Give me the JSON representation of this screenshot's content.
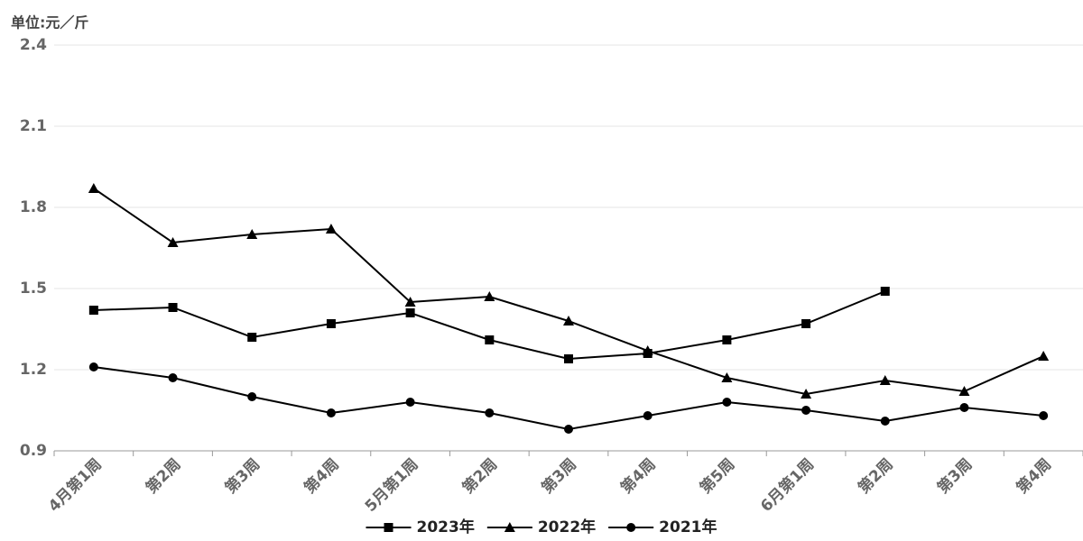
{
  "chart_data": {
    "type": "line",
    "unit_label": "单位:元／斤",
    "categories": [
      "4月第1周",
      "第2周",
      "第3周",
      "第4周",
      "5月第1周",
      "第2周",
      "第3周",
      "第4周",
      "第5周",
      "6月第1周",
      "第2周",
      "第3周",
      "第4周"
    ],
    "series": [
      {
        "name": "2023年",
        "color": "#000000",
        "marker": "square",
        "values": [
          1.42,
          1.43,
          1.32,
          1.37,
          1.41,
          1.31,
          1.24,
          1.26,
          1.31,
          1.37,
          1.49,
          null,
          null
        ]
      },
      {
        "name": "2022年",
        "color": "#000000",
        "marker": "triangle",
        "values": [
          1.87,
          1.67,
          1.7,
          1.72,
          1.45,
          1.47,
          1.38,
          1.27,
          1.17,
          1.11,
          1.16,
          1.12,
          1.25
        ]
      },
      {
        "name": "2021年",
        "color": "#000000",
        "marker": "circle",
        "values": [
          1.21,
          1.17,
          1.1,
          1.04,
          1.08,
          1.04,
          0.98,
          1.03,
          1.08,
          1.05,
          1.01,
          1.06,
          1.03
        ]
      }
    ],
    "ylim": [
      0.9,
      2.4
    ],
    "yticks": [
      0.9,
      1.2,
      1.5,
      1.8,
      2.1,
      2.4
    ],
    "grid": true,
    "legend": "bottom"
  }
}
